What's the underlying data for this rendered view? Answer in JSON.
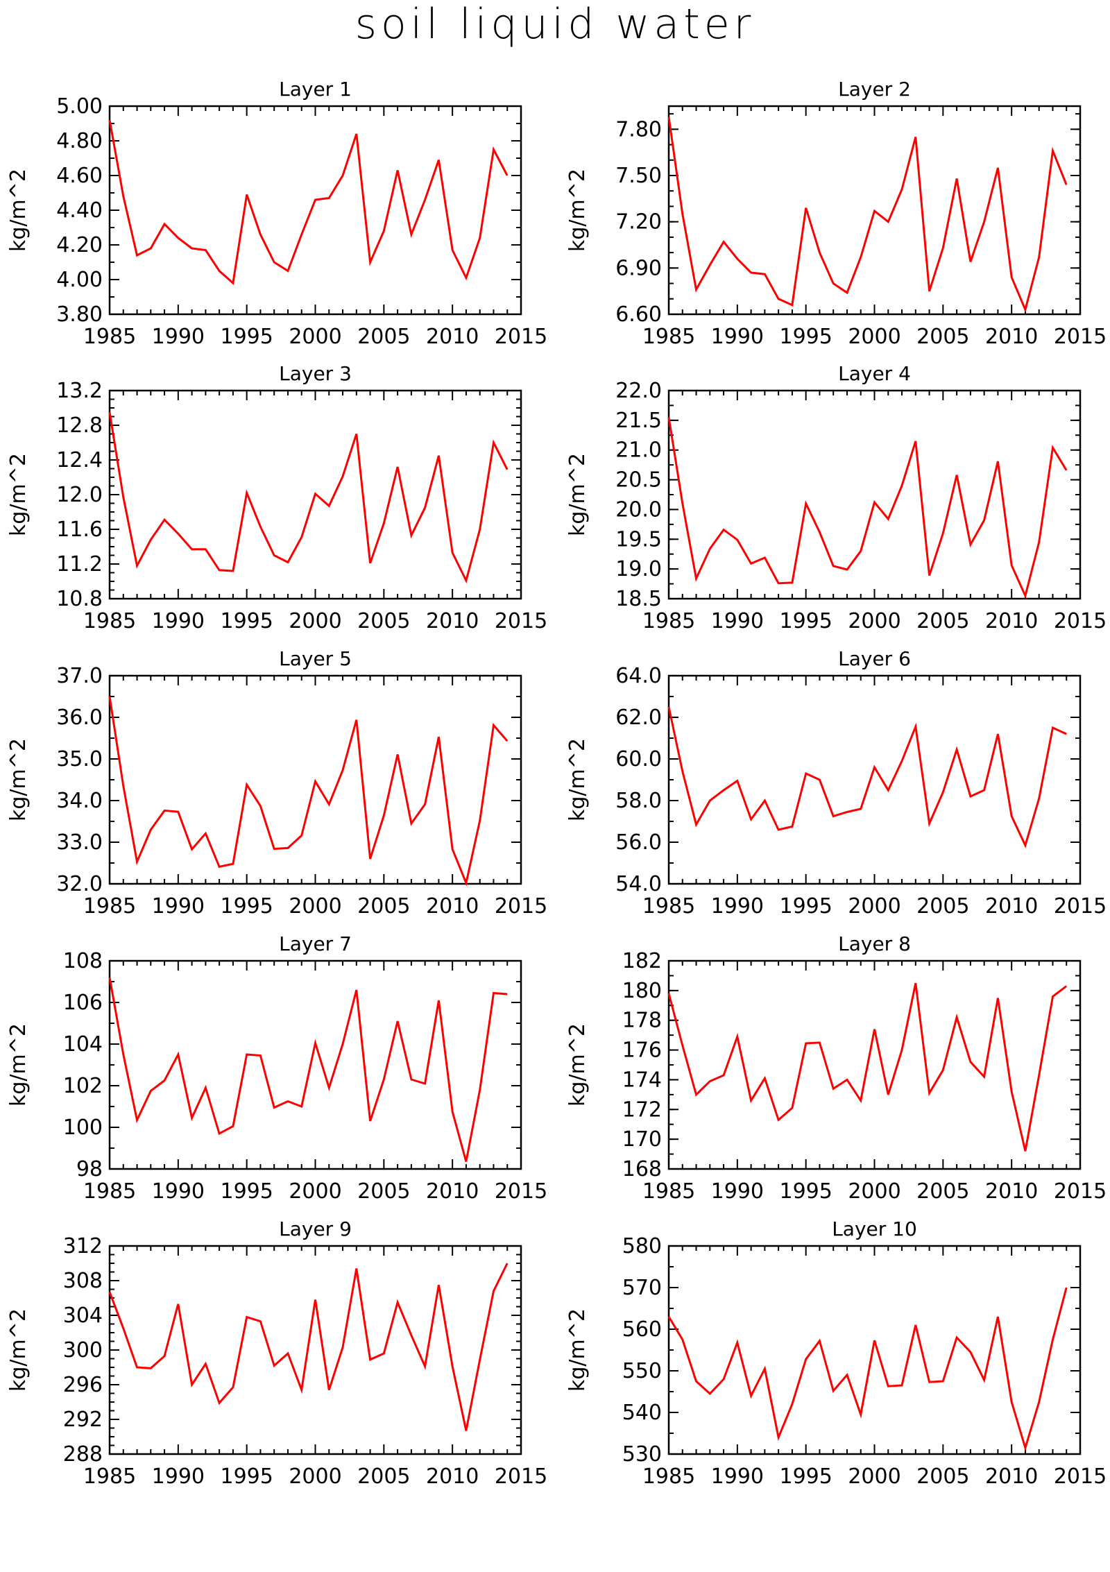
{
  "title": "soil liquid water",
  "footer": "",
  "chart_data": [
    {
      "type": "line",
      "title": "Layer 1",
      "xlabel": "",
      "ylabel": "kg/m^2",
      "xlim": [
        1985,
        2015
      ],
      "ylim": [
        3.8,
        5.0
      ],
      "yticks": [
        "3.80",
        "4.00",
        "4.20",
        "4.40",
        "4.60",
        "4.80",
        "5.00"
      ],
      "xticks": [
        "1985",
        "1990",
        "1995",
        "2000",
        "2005",
        "2010",
        "2015"
      ],
      "x": [
        1985,
        1986,
        1987,
        1988,
        1989,
        1990,
        1991,
        1992,
        1993,
        1994,
        1995,
        1996,
        1997,
        1998,
        1999,
        2000,
        2001,
        2002,
        2003,
        2004,
        2005,
        2006,
        2007,
        2008,
        2009,
        2010,
        2011,
        2012,
        2013,
        2014
      ],
      "values": [
        4.92,
        4.48,
        4.14,
        4.18,
        4.32,
        4.24,
        4.18,
        4.17,
        4.05,
        3.98,
        4.49,
        4.26,
        4.1,
        4.05,
        4.26,
        4.46,
        4.47,
        4.6,
        4.84,
        4.1,
        4.28,
        4.63,
        4.26,
        4.46,
        4.69,
        4.17,
        4.01,
        4.24,
        4.75,
        4.6
      ],
      "color": "#ff0000",
      "grid": false
    },
    {
      "type": "line",
      "title": "Layer 2",
      "xlabel": "",
      "ylabel": "kg/m^2",
      "xlim": [
        1985,
        2015
      ],
      "ylim": [
        6.6,
        7.95
      ],
      "yticks": [
        "6.60",
        "6.90",
        "7.20",
        "7.50",
        "7.80"
      ],
      "xticks": [
        "1985",
        "1990",
        "1995",
        "2000",
        "2005",
        "2010",
        "2015"
      ],
      "x": [
        1985,
        1986,
        1987,
        1988,
        1989,
        1990,
        1991,
        1992,
        1993,
        1994,
        1995,
        1996,
        1997,
        1998,
        1999,
        2000,
        2001,
        2002,
        2003,
        2004,
        2005,
        2006,
        2007,
        2008,
        2009,
        2010,
        2011,
        2012,
        2013,
        2014
      ],
      "values": [
        7.88,
        7.25,
        6.76,
        6.92,
        7.07,
        6.96,
        6.87,
        6.86,
        6.7,
        6.66,
        7.29,
        7.0,
        6.8,
        6.74,
        6.97,
        7.27,
        7.2,
        7.41,
        7.75,
        6.75,
        7.03,
        7.48,
        6.94,
        7.2,
        7.55,
        6.84,
        6.63,
        6.97,
        7.66,
        7.44
      ],
      "color": "#ff0000",
      "grid": false
    },
    {
      "type": "line",
      "title": "Layer 3",
      "xlabel": "",
      "ylabel": "kg/m^2",
      "xlim": [
        1985,
        2015
      ],
      "ylim": [
        10.8,
        13.2
      ],
      "yticks": [
        "10.8",
        "11.2",
        "11.6",
        "12.0",
        "12.4",
        "12.8",
        "13.2"
      ],
      "xticks": [
        "1985",
        "1990",
        "1995",
        "2000",
        "2005",
        "2010",
        "2015"
      ],
      "x": [
        1985,
        1986,
        1987,
        1988,
        1989,
        1990,
        1991,
        1992,
        1993,
        1994,
        1995,
        1996,
        1997,
        1998,
        1999,
        2000,
        2001,
        2002,
        2003,
        2004,
        2005,
        2006,
        2007,
        2008,
        2009,
        2010,
        2011,
        2012,
        2013,
        2014
      ],
      "values": [
        12.95,
        11.97,
        11.18,
        11.48,
        11.71,
        11.55,
        11.37,
        11.37,
        11.13,
        11.12,
        12.02,
        11.63,
        11.3,
        11.22,
        11.51,
        12.01,
        11.87,
        12.21,
        12.7,
        11.21,
        11.67,
        12.32,
        11.53,
        11.85,
        12.45,
        11.33,
        11.01,
        11.6,
        12.6,
        12.29
      ],
      "color": "#ff0000",
      "grid": false
    },
    {
      "type": "line",
      "title": "Layer 4",
      "xlabel": "",
      "ylabel": "kg/m^2",
      "xlim": [
        1985,
        2015
      ],
      "ylim": [
        18.5,
        22.0
      ],
      "yticks": [
        "18.5",
        "19.0",
        "19.5",
        "20.0",
        "20.5",
        "21.0",
        "21.5",
        "22.0"
      ],
      "xticks": [
        "1985",
        "1990",
        "1995",
        "2000",
        "2005",
        "2010",
        "2015"
      ],
      "x": [
        1985,
        1986,
        1987,
        1988,
        1989,
        1990,
        1991,
        1992,
        1993,
        1994,
        1995,
        1996,
        1997,
        1998,
        1999,
        2000,
        2001,
        2002,
        2003,
        2004,
        2005,
        2006,
        2007,
        2008,
        2009,
        2010,
        2011,
        2012,
        2013,
        2014
      ],
      "values": [
        21.55,
        20.1,
        18.84,
        19.34,
        19.66,
        19.49,
        19.09,
        19.19,
        18.76,
        18.77,
        20.1,
        19.62,
        19.05,
        18.99,
        19.3,
        20.12,
        19.84,
        20.4,
        21.15,
        18.89,
        19.6,
        20.58,
        19.41,
        19.82,
        20.81,
        19.06,
        18.55,
        19.45,
        21.04,
        20.66
      ],
      "color": "#ff0000",
      "grid": false
    },
    {
      "type": "line",
      "title": "Layer 5",
      "xlabel": "",
      "ylabel": "kg/m^2",
      "xlim": [
        1985,
        2015
      ],
      "ylim": [
        32.0,
        37.0
      ],
      "yticks": [
        "32.0",
        "33.0",
        "34.0",
        "35.0",
        "36.0",
        "37.0"
      ],
      "xticks": [
        "1985",
        "1990",
        "1995",
        "2000",
        "2005",
        "2010",
        "2015"
      ],
      "x": [
        1985,
        1986,
        1987,
        1988,
        1989,
        1990,
        1991,
        1992,
        1993,
        1994,
        1995,
        1996,
        1997,
        1998,
        1999,
        2000,
        2001,
        2002,
        2003,
        2004,
        2005,
        2006,
        2007,
        2008,
        2009,
        2010,
        2011,
        2012,
        2013,
        2014
      ],
      "values": [
        36.5,
        34.35,
        32.53,
        33.3,
        33.76,
        33.73,
        32.83,
        33.21,
        32.41,
        32.48,
        34.38,
        33.87,
        32.84,
        32.86,
        33.16,
        34.46,
        33.91,
        34.73,
        35.94,
        32.6,
        33.64,
        35.11,
        33.45,
        33.91,
        35.53,
        32.83,
        32.02,
        33.52,
        35.81,
        35.43
      ],
      "color": "#ff0000",
      "grid": false
    },
    {
      "type": "line",
      "title": "Layer 6",
      "xlabel": "",
      "ylabel": "kg/m^2",
      "xlim": [
        1985,
        2015
      ],
      "ylim": [
        54.0,
        64.0
      ],
      "yticks": [
        "54.0",
        "56.0",
        "58.0",
        "60.0",
        "62.0",
        "64.0"
      ],
      "xticks": [
        "1985",
        "1990",
        "1995",
        "2000",
        "2005",
        "2010",
        "2015"
      ],
      "x": [
        1985,
        1986,
        1987,
        1988,
        1989,
        1990,
        1991,
        1992,
        1993,
        1994,
        1995,
        1996,
        1997,
        1998,
        1999,
        2000,
        2001,
        2002,
        2003,
        2004,
        2005,
        2006,
        2007,
        2008,
        2009,
        2010,
        2011,
        2012,
        2013,
        2014
      ],
      "values": [
        62.5,
        59.4,
        56.85,
        58.0,
        58.5,
        58.95,
        57.1,
        58.0,
        56.6,
        56.75,
        59.3,
        59.0,
        57.25,
        57.45,
        57.6,
        59.6,
        58.5,
        59.9,
        61.55,
        56.9,
        58.4,
        60.45,
        58.2,
        58.5,
        61.2,
        57.25,
        55.85,
        58.1,
        61.5,
        61.2
      ],
      "color": "#ff0000",
      "grid": false
    },
    {
      "type": "line",
      "title": "Layer 7",
      "xlabel": "",
      "ylabel": "kg/m^2",
      "xlim": [
        1985,
        2015
      ],
      "ylim": [
        98,
        108
      ],
      "yticks": [
        "98",
        "100",
        "102",
        "104",
        "106",
        "108"
      ],
      "xticks": [
        "1985",
        "1990",
        "1995",
        "2000",
        "2005",
        "2010",
        "2015"
      ],
      "x": [
        1985,
        1986,
        1987,
        1988,
        1989,
        1990,
        1991,
        1992,
        1993,
        1994,
        1995,
        1996,
        1997,
        1998,
        1999,
        2000,
        2001,
        2002,
        2003,
        2004,
        2005,
        2006,
        2007,
        2008,
        2009,
        2010,
        2011,
        2012,
        2013,
        2014
      ],
      "values": [
        107.2,
        103.5,
        100.35,
        101.75,
        102.25,
        103.5,
        100.45,
        101.9,
        99.7,
        100.05,
        103.5,
        103.45,
        100.95,
        101.25,
        101.0,
        104.05,
        101.9,
        104.0,
        106.6,
        100.3,
        102.3,
        105.1,
        102.3,
        102.1,
        106.1,
        100.75,
        98.35,
        101.8,
        106.45,
        106.4
      ],
      "color": "#ff0000",
      "grid": false
    },
    {
      "type": "line",
      "title": "Layer 8",
      "xlabel": "",
      "ylabel": "kg/m^2",
      "xlim": [
        1985,
        2015
      ],
      "ylim": [
        168,
        182
      ],
      "yticks": [
        "168",
        "170",
        "172",
        "174",
        "176",
        "178",
        "180",
        "182"
      ],
      "xticks": [
        "1985",
        "1990",
        "1995",
        "2000",
        "2005",
        "2010",
        "2015"
      ],
      "x": [
        1985,
        1986,
        1987,
        1988,
        1989,
        1990,
        1991,
        1992,
        1993,
        1994,
        1995,
        1996,
        1997,
        1998,
        1999,
        2000,
        2001,
        2002,
        2003,
        2004,
        2005,
        2006,
        2007,
        2008,
        2009,
        2010,
        2011,
        2012,
        2013,
        2014
      ],
      "values": [
        179.8,
        176.3,
        173.0,
        173.9,
        174.3,
        176.9,
        172.6,
        174.1,
        171.3,
        172.1,
        176.45,
        176.5,
        173.4,
        174.0,
        172.6,
        177.4,
        173.0,
        176.0,
        180.5,
        173.1,
        174.65,
        178.2,
        175.2,
        174.2,
        179.5,
        173.2,
        169.2,
        174.3,
        179.6,
        180.3
      ],
      "color": "#ff0000",
      "grid": false
    },
    {
      "type": "line",
      "title": "Layer 9",
      "xlabel": "",
      "ylabel": "kg/m^2",
      "xlim": [
        1985,
        2015
      ],
      "ylim": [
        288,
        312
      ],
      "yticks": [
        "288",
        "292",
        "296",
        "300",
        "304",
        "308",
        "312"
      ],
      "xticks": [
        "1985",
        "1990",
        "1995",
        "2000",
        "2005",
        "2010",
        "2015"
      ],
      "x": [
        1985,
        1986,
        1987,
        1988,
        1989,
        1990,
        1991,
        1992,
        1993,
        1994,
        1995,
        1996,
        1997,
        1998,
        1999,
        2000,
        2001,
        2002,
        2003,
        2004,
        2005,
        2006,
        2007,
        2008,
        2009,
        2010,
        2011,
        2012,
        2013,
        2014
      ],
      "values": [
        306.7,
        302.5,
        298.0,
        297.9,
        299.3,
        305.3,
        296.0,
        298.4,
        293.9,
        295.7,
        303.8,
        303.3,
        298.2,
        299.6,
        295.4,
        305.8,
        295.4,
        300.3,
        309.4,
        298.9,
        299.6,
        305.5,
        301.7,
        298.1,
        307.5,
        298.1,
        290.7,
        298.9,
        306.8,
        310.0
      ],
      "color": "#ff0000",
      "grid": false
    },
    {
      "type": "line",
      "title": "Layer 10",
      "xlabel": "",
      "ylabel": "kg/m^2",
      "xlim": [
        1985,
        2015
      ],
      "ylim": [
        530,
        580
      ],
      "yticks": [
        "530",
        "540",
        "550",
        "560",
        "570",
        "580"
      ],
      "xticks": [
        "1985",
        "1990",
        "1995",
        "2000",
        "2005",
        "2010",
        "2015"
      ],
      "x": [
        1985,
        1986,
        1987,
        1988,
        1989,
        1990,
        1991,
        1992,
        1993,
        1994,
        1995,
        1996,
        1997,
        1998,
        1999,
        2000,
        2001,
        2002,
        2003,
        2004,
        2005,
        2006,
        2007,
        2008,
        2009,
        2010,
        2011,
        2012,
        2013,
        2014
      ],
      "values": [
        563.0,
        557.5,
        547.5,
        544.5,
        548.0,
        556.8,
        544.0,
        550.5,
        534.0,
        542.0,
        552.8,
        557.2,
        545.2,
        549.0,
        539.5,
        557.3,
        546.3,
        546.5,
        561.0,
        547.3,
        547.5,
        558.0,
        554.5,
        547.8,
        563.0,
        542.5,
        531.5,
        542.5,
        557.5,
        570.0
      ],
      "color": "#ff0000",
      "grid": false
    }
  ]
}
